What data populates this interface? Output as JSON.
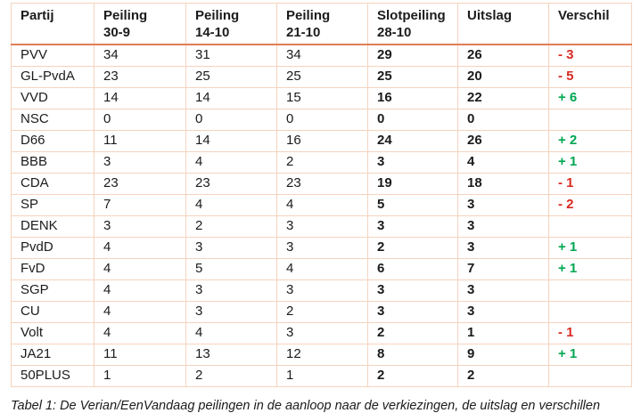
{
  "colors": {
    "text": "#1b1b1b",
    "cell_border": "#f5d3be",
    "header_underline": "#de7e55",
    "positive": "#00a651",
    "negative": "#d92b21",
    "background": "#ffffff"
  },
  "table": {
    "columns": [
      {
        "label": "Partij",
        "sub": ""
      },
      {
        "label": "Peiling",
        "sub": "30-9"
      },
      {
        "label": "Peiling",
        "sub": "14-10"
      },
      {
        "label": "Peiling",
        "sub": "21-10"
      },
      {
        "label": "Slotpeiling",
        "sub": "28-10"
      },
      {
        "label": "Uitslag",
        "sub": ""
      },
      {
        "label": "Verschil",
        "sub": ""
      }
    ],
    "rows": [
      {
        "partij": "PVV",
        "peiling_30_9": "34",
        "peiling_14_10": "31",
        "peiling_21_10": "34",
        "slotpeiling_28_10": "29",
        "uitslag": "26",
        "verschil": "- 3"
      },
      {
        "partij": "GL-PvdA",
        "peiling_30_9": "23",
        "peiling_14_10": "25",
        "peiling_21_10": "25",
        "slotpeiling_28_10": "25",
        "uitslag": "20",
        "verschil": "- 5"
      },
      {
        "partij": "VVD",
        "peiling_30_9": "14",
        "peiling_14_10": "14",
        "peiling_21_10": "15",
        "slotpeiling_28_10": "16",
        "uitslag": "22",
        "verschil": "+ 6"
      },
      {
        "partij": "NSC",
        "peiling_30_9": "0",
        "peiling_14_10": "0",
        "peiling_21_10": "0",
        "slotpeiling_28_10": "0",
        "uitslag": "0",
        "verschil": ""
      },
      {
        "partij": "D66",
        "peiling_30_9": "11",
        "peiling_14_10": "14",
        "peiling_21_10": "16",
        "slotpeiling_28_10": "24",
        "uitslag": "26",
        "verschil": "+ 2"
      },
      {
        "partij": "BBB",
        "peiling_30_9": "3",
        "peiling_14_10": "4",
        "peiling_21_10": "2",
        "slotpeiling_28_10": "3",
        "uitslag": "4",
        "verschil": "+ 1"
      },
      {
        "partij": "CDA",
        "peiling_30_9": "23",
        "peiling_14_10": "23",
        "peiling_21_10": "23",
        "slotpeiling_28_10": "19",
        "uitslag": "18",
        "verschil": "- 1"
      },
      {
        "partij": "SP",
        "peiling_30_9": "7",
        "peiling_14_10": "4",
        "peiling_21_10": "4",
        "slotpeiling_28_10": "5",
        "uitslag": "3",
        "verschil": "- 2"
      },
      {
        "partij": "DENK",
        "peiling_30_9": "3",
        "peiling_14_10": "2",
        "peiling_21_10": "3",
        "slotpeiling_28_10": "3",
        "uitslag": "3",
        "verschil": ""
      },
      {
        "partij": "PvdD",
        "peiling_30_9": "4",
        "peiling_14_10": "3",
        "peiling_21_10": "3",
        "slotpeiling_28_10": "2",
        "uitslag": "3",
        "verschil": "+ 1"
      },
      {
        "partij": "FvD",
        "peiling_30_9": "4",
        "peiling_14_10": "5",
        "peiling_21_10": "4",
        "slotpeiling_28_10": "6",
        "uitslag": "7",
        "verschil": "+ 1"
      },
      {
        "partij": "SGP",
        "peiling_30_9": "4",
        "peiling_14_10": "3",
        "peiling_21_10": "3",
        "slotpeiling_28_10": "3",
        "uitslag": "3",
        "verschil": ""
      },
      {
        "partij": "CU",
        "peiling_30_9": "4",
        "peiling_14_10": "3",
        "peiling_21_10": "2",
        "slotpeiling_28_10": "3",
        "uitslag": "3",
        "verschil": ""
      },
      {
        "partij": "Volt",
        "peiling_30_9": "4",
        "peiling_14_10": "4",
        "peiling_21_10": "3",
        "slotpeiling_28_10": "2",
        "uitslag": "1",
        "verschil": "- 1"
      },
      {
        "partij": "JA21",
        "peiling_30_9": "11",
        "peiling_14_10": "13",
        "peiling_21_10": "12",
        "slotpeiling_28_10": "8",
        "uitslag": "9",
        "verschil": "+ 1"
      },
      {
        "partij": "50PLUS",
        "peiling_30_9": "1",
        "peiling_14_10": "2",
        "peiling_21_10": "1",
        "slotpeiling_28_10": "2",
        "uitslag": "2",
        "verschil": ""
      }
    ]
  },
  "caption": "Tabel 1: De Verian/EenVandaag peilingen in de aanloop naar de verkiezingen, de uitslag en verschillen"
}
